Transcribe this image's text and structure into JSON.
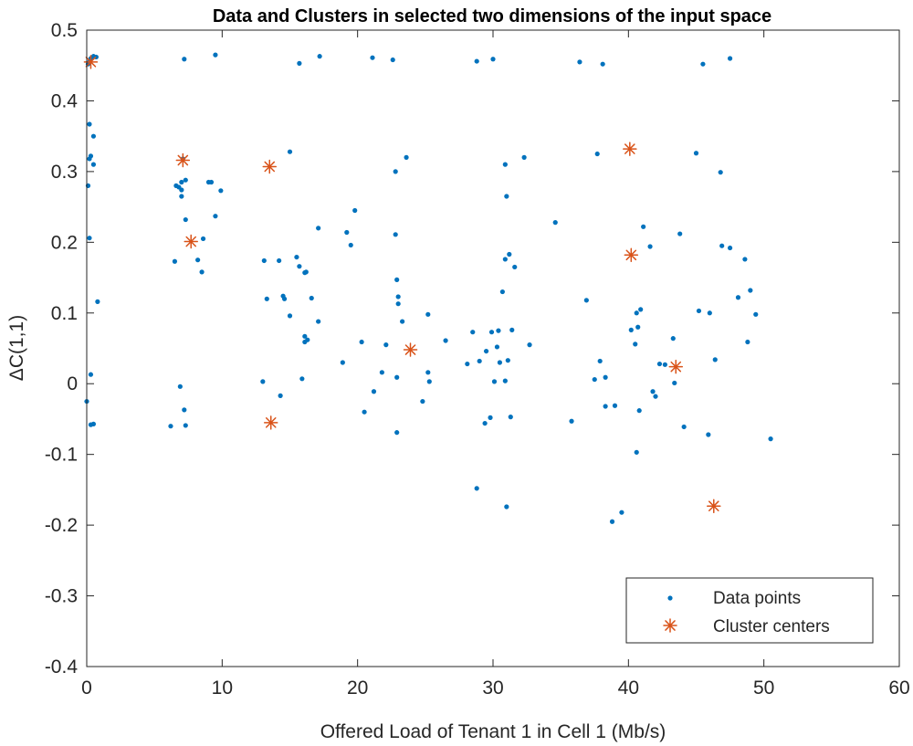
{
  "chart_data": {
    "type": "scatter",
    "title": "Data and Clusters in selected two dimensions of the input space",
    "xlabel": "Offered Load of Tenant 1 in Cell 1 (Mb/s)",
    "ylabel": "ΔC(1,1)",
    "xlim": [
      0,
      60
    ],
    "ylim": [
      -0.4,
      0.5
    ],
    "xticks": [
      0,
      10,
      20,
      30,
      40,
      50,
      60
    ],
    "yticks": [
      -0.4,
      -0.3,
      -0.2,
      -0.1,
      0,
      0.1,
      0.2,
      0.3,
      0.4,
      0.5
    ],
    "grid": false,
    "legend_position": "bottom-right",
    "colors": {
      "points": "#0072BD",
      "centers": "#D95319",
      "axis": "#262626"
    },
    "series": [
      {
        "name": "Data points",
        "marker": "dot",
        "points": [
          [
            0.2,
            0.455
          ],
          [
            0.3,
            0.46
          ],
          [
            0.5,
            0.463
          ],
          [
            0.7,
            0.462
          ],
          [
            0.1,
            0.452
          ],
          [
            0.2,
            0.367
          ],
          [
            0.5,
            0.35
          ],
          [
            0.3,
            0.322
          ],
          [
            0.2,
            0.318
          ],
          [
            0.5,
            0.31
          ],
          [
            0.1,
            0.28
          ],
          [
            0.2,
            0.206
          ],
          [
            0.8,
            0.116
          ],
          [
            0.3,
            0.013
          ],
          [
            0.0,
            -0.025
          ],
          [
            0.5,
            -0.057
          ],
          [
            0.3,
            -0.058
          ],
          [
            7.2,
            0.459
          ],
          [
            9.5,
            0.465
          ],
          [
            7.1,
            0.318
          ],
          [
            6.6,
            0.28
          ],
          [
            6.8,
            0.278
          ],
          [
            7.0,
            0.285
          ],
          [
            7.3,
            0.288
          ],
          [
            7.0,
            0.274
          ],
          [
            7.0,
            0.265
          ],
          [
            7.3,
            0.232
          ],
          [
            9.0,
            0.285
          ],
          [
            9.2,
            0.285
          ],
          [
            9.9,
            0.273
          ],
          [
            9.5,
            0.237
          ],
          [
            6.5,
            0.173
          ],
          [
            8.2,
            0.175
          ],
          [
            8.6,
            0.205
          ],
          [
            8.5,
            0.158
          ],
          [
            6.9,
            -0.004
          ],
          [
            7.2,
            -0.037
          ],
          [
            6.2,
            -0.06
          ],
          [
            7.3,
            -0.059
          ],
          [
            13.1,
            0.174
          ],
          [
            14.2,
            0.174
          ],
          [
            13.3,
            0.12
          ],
          [
            14.5,
            0.124
          ],
          [
            14.6,
            0.12
          ],
          [
            15.5,
            0.179
          ],
          [
            15.7,
            0.166
          ],
          [
            16.1,
            0.157
          ],
          [
            16.2,
            0.158
          ],
          [
            15.0,
            0.096
          ],
          [
            16.6,
            0.121
          ],
          [
            16.1,
            0.067
          ],
          [
            16.1,
            0.059
          ],
          [
            16.3,
            0.062
          ],
          [
            15.9,
            0.007
          ],
          [
            13.0,
            0.003
          ],
          [
            14.3,
            -0.017
          ],
          [
            15.0,
            0.328
          ],
          [
            15.7,
            0.453
          ],
          [
            17.2,
            0.463
          ],
          [
            17.1,
            0.22
          ],
          [
            17.1,
            0.088
          ],
          [
            18.9,
            0.03
          ],
          [
            19.2,
            0.214
          ],
          [
            19.8,
            0.245
          ],
          [
            19.5,
            0.196
          ],
          [
            20.3,
            0.059
          ],
          [
            20.5,
            -0.04
          ],
          [
            21.1,
            0.461
          ],
          [
            21.2,
            -0.011
          ],
          [
            21.8,
            0.016
          ],
          [
            22.6,
            0.458
          ],
          [
            22.1,
            0.055
          ],
          [
            22.8,
            0.3
          ],
          [
            22.8,
            0.211
          ],
          [
            22.9,
            0.147
          ],
          [
            23.0,
            0.123
          ],
          [
            23.0,
            0.113
          ],
          [
            22.9,
            0.009
          ],
          [
            22.9,
            -0.069
          ],
          [
            23.3,
            0.088
          ],
          [
            23.6,
            0.32
          ],
          [
            24.8,
            -0.025
          ],
          [
            25.2,
            0.098
          ],
          [
            25.2,
            0.016
          ],
          [
            25.3,
            0.003
          ],
          [
            26.5,
            0.061
          ],
          [
            28.1,
            0.028
          ],
          [
            28.5,
            0.073
          ],
          [
            28.8,
            0.456
          ],
          [
            29.0,
            0.032
          ],
          [
            29.4,
            -0.056
          ],
          [
            29.5,
            0.046
          ],
          [
            29.8,
            -0.048
          ],
          [
            29.9,
            0.073
          ],
          [
            30.0,
            0.459
          ],
          [
            30.1,
            0.003
          ],
          [
            30.3,
            0.052
          ],
          [
            30.4,
            0.075
          ],
          [
            30.5,
            0.03
          ],
          [
            30.7,
            0.13
          ],
          [
            30.9,
            0.31
          ],
          [
            30.9,
            0.176
          ],
          [
            31.0,
            0.265
          ],
          [
            31.2,
            0.183
          ],
          [
            31.1,
            0.033
          ],
          [
            31.4,
            0.076
          ],
          [
            31.6,
            0.165
          ],
          [
            31.3,
            -0.047
          ],
          [
            32.3,
            0.32
          ],
          [
            32.7,
            0.055
          ],
          [
            30.9,
            0.004
          ],
          [
            28.8,
            -0.148
          ],
          [
            31.0,
            -0.174
          ],
          [
            34.6,
            0.228
          ],
          [
            35.8,
            -0.053
          ],
          [
            36.4,
            0.455
          ],
          [
            36.9,
            0.118
          ],
          [
            37.5,
            0.006
          ],
          [
            37.7,
            0.325
          ],
          [
            37.9,
            0.032
          ],
          [
            38.1,
            0.452
          ],
          [
            38.3,
            0.009
          ],
          [
            38.3,
            -0.032
          ],
          [
            38.8,
            -0.195
          ],
          [
            39.0,
            -0.031
          ],
          [
            39.5,
            -0.182
          ],
          [
            40.2,
            0.076
          ],
          [
            40.5,
            0.056
          ],
          [
            40.6,
            0.1
          ],
          [
            40.7,
            0.08
          ],
          [
            40.8,
            -0.038
          ],
          [
            40.9,
            0.105
          ],
          [
            40.6,
            -0.097
          ],
          [
            41.1,
            0.222
          ],
          [
            41.6,
            0.194
          ],
          [
            41.8,
            -0.011
          ],
          [
            42.0,
            -0.018
          ],
          [
            42.3,
            0.028
          ],
          [
            42.7,
            0.027
          ],
          [
            43.3,
            0.064
          ],
          [
            43.4,
            0.001
          ],
          [
            43.8,
            0.212
          ],
          [
            44.1,
            -0.061
          ],
          [
            45.0,
            0.326
          ],
          [
            45.2,
            0.103
          ],
          [
            45.5,
            0.452
          ],
          [
            45.9,
            -0.072
          ],
          [
            46.0,
            0.1
          ],
          [
            46.4,
            0.034
          ],
          [
            46.8,
            0.299
          ],
          [
            46.9,
            0.195
          ],
          [
            47.5,
            0.46
          ],
          [
            47.5,
            0.192
          ],
          [
            48.1,
            0.122
          ],
          [
            48.6,
            0.176
          ],
          [
            48.8,
            0.059
          ],
          [
            49.0,
            0.132
          ],
          [
            49.4,
            0.098
          ],
          [
            50.5,
            -0.078
          ]
        ]
      },
      {
        "name": "Cluster centers",
        "marker": "asterisk",
        "points": [
          [
            0.3,
            0.455
          ],
          [
            7.1,
            0.316
          ],
          [
            7.7,
            0.201
          ],
          [
            13.5,
            0.307
          ],
          [
            13.6,
            -0.055
          ],
          [
            23.9,
            0.048
          ],
          [
            40.1,
            0.332
          ],
          [
            40.2,
            0.182
          ],
          [
            43.5,
            0.024
          ],
          [
            46.3,
            -0.173
          ]
        ]
      }
    ]
  }
}
